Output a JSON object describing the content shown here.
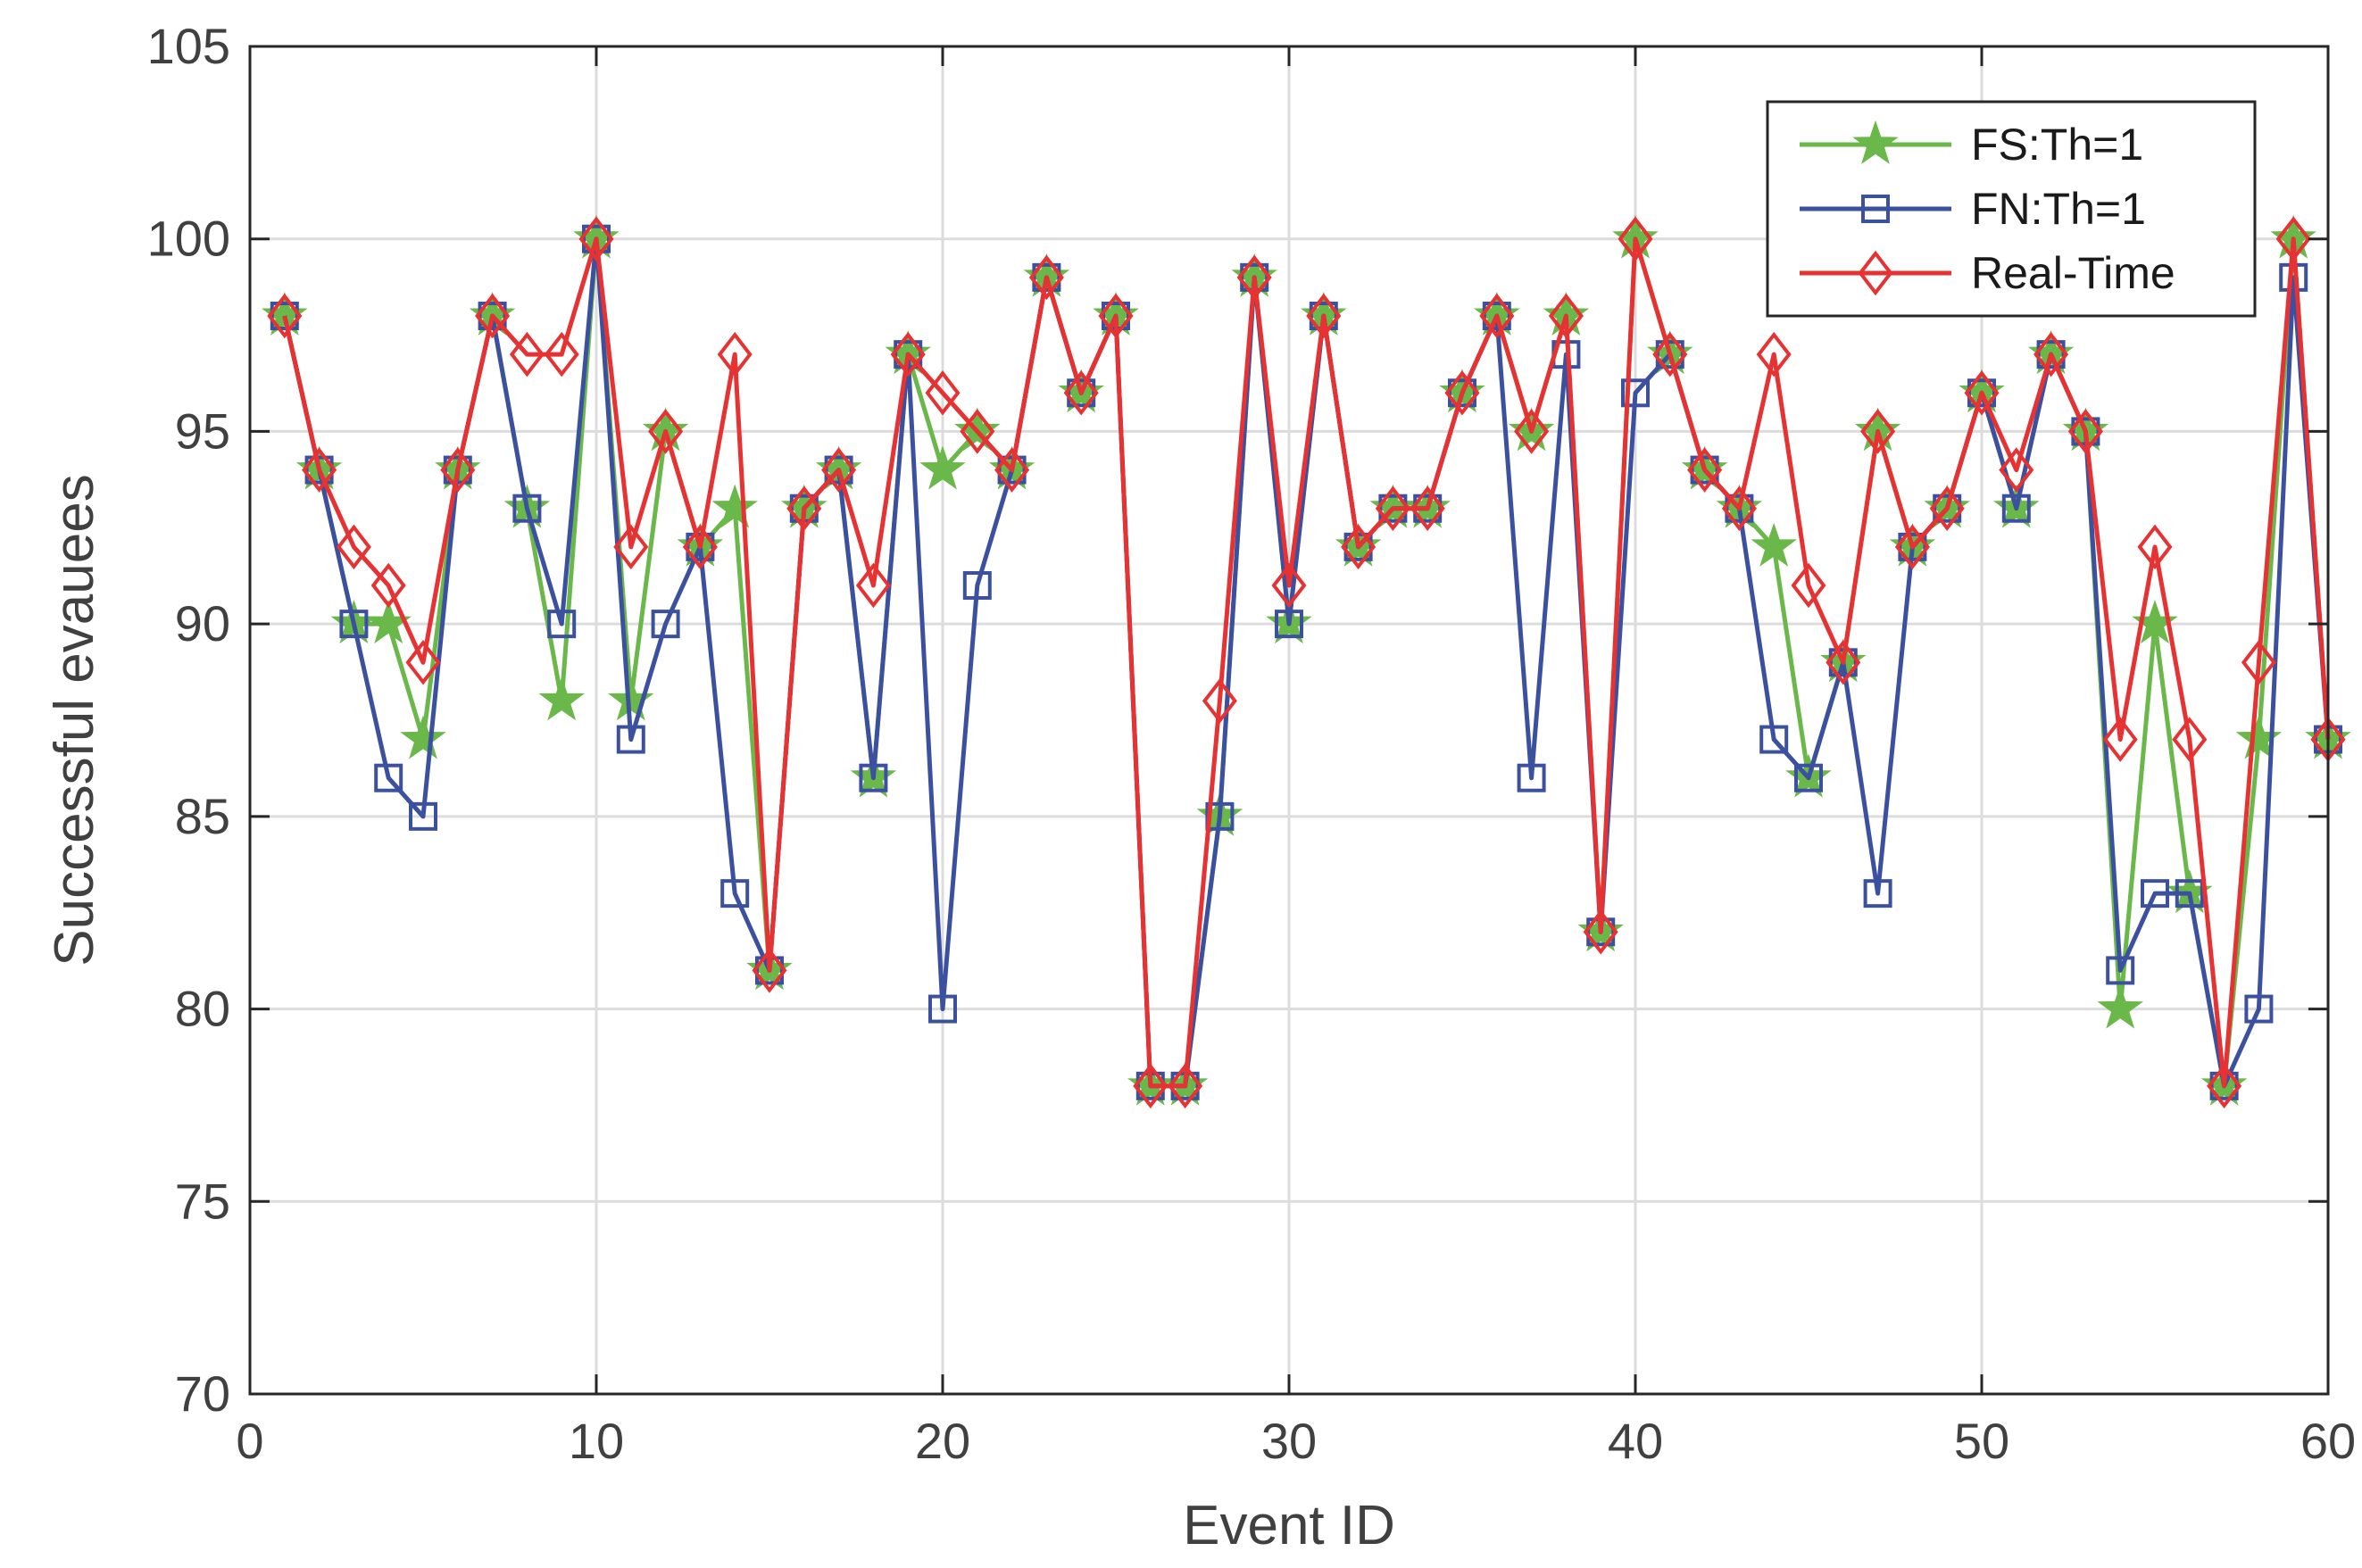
{
  "chart_data": {
    "type": "line",
    "title": "",
    "xlabel": "Event ID",
    "ylabel": "Successful evauees",
    "xlim": [
      0,
      60
    ],
    "ylim": [
      70,
      105
    ],
    "xticks": [
      0,
      10,
      20,
      30,
      40,
      50,
      60
    ],
    "yticks": [
      70,
      75,
      80,
      85,
      90,
      95,
      100,
      105
    ],
    "grid": true,
    "legend_position": "top-right",
    "x": [
      1,
      2,
      3,
      4,
      5,
      6,
      7,
      8,
      9,
      10,
      11,
      12,
      13,
      14,
      15,
      16,
      17,
      18,
      19,
      20,
      21,
      22,
      23,
      24,
      25,
      26,
      27,
      28,
      29,
      30,
      31,
      32,
      33,
      34,
      35,
      36,
      37,
      38,
      39,
      40,
      41,
      42,
      43,
      44,
      45,
      46,
      47,
      48,
      49,
      50,
      51,
      52,
      53,
      54,
      55,
      56,
      57,
      58,
      59,
      60
    ],
    "series": [
      {
        "name": "FS:Th=1",
        "color": "#6ab74a",
        "marker": "star",
        "values": [
          98,
          94,
          90,
          90,
          87,
          94,
          98,
          93,
          88,
          100,
          88,
          95,
          92,
          93,
          81,
          93,
          94,
          86,
          97,
          94,
          95,
          94,
          99,
          96,
          98,
          78,
          78,
          85,
          99,
          90,
          98,
          92,
          93,
          93,
          96,
          98,
          95,
          98,
          82,
          100,
          97,
          94,
          93,
          92,
          86,
          89,
          95,
          92,
          93,
          96,
          93,
          97,
          95,
          80,
          90,
          83,
          78,
          87,
          100,
          87
        ]
      },
      {
        "name": "FN:Th=1",
        "color": "#3c50a0",
        "marker": "square",
        "values": [
          98,
          94,
          90,
          86,
          85,
          94,
          98,
          93,
          90,
          100,
          87,
          90,
          92,
          83,
          81,
          93,
          94,
          86,
          97,
          80,
          91,
          94,
          99,
          96,
          98,
          78,
          78,
          85,
          99,
          90,
          98,
          92,
          93,
          93,
          96,
          98,
          86,
          97,
          82,
          96,
          97,
          94,
          93,
          87,
          86,
          89,
          83,
          92,
          93,
          96,
          93,
          97,
          95,
          81,
          83,
          83,
          78,
          80,
          99,
          87
        ]
      },
      {
        "name": "Real-Time",
        "color": "#e63232",
        "marker": "diamond",
        "values": [
          98,
          94,
          92,
          91,
          89,
          94,
          98,
          97,
          97,
          100,
          92,
          95,
          92,
          97,
          81,
          93,
          94,
          91,
          97,
          96,
          95,
          94,
          99,
          96,
          98,
          78,
          78,
          88,
          99,
          91,
          98,
          92,
          93,
          93,
          96,
          98,
          95,
          98,
          82,
          100,
          97,
          94,
          93,
          97,
          91,
          89,
          95,
          92,
          93,
          96,
          94,
          97,
          95,
          87,
          92,
          87,
          78,
          89,
          100,
          87
        ]
      }
    ]
  }
}
